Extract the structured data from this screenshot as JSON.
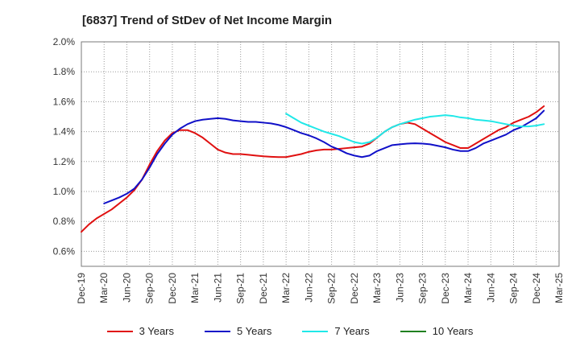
{
  "title": "[6837]  Trend of StDev of Net Income Margin",
  "chart_data": {
    "type": "line",
    "title": "[6837]  Trend of StDev of Net Income Margin",
    "x_ticks": [
      "Dec-19",
      "Mar-20",
      "Jun-20",
      "Sep-20",
      "Dec-20",
      "Mar-21",
      "Jun-21",
      "Sep-21",
      "Dec-21",
      "Mar-22",
      "Jun-22",
      "Sep-22",
      "Dec-22",
      "Mar-23",
      "Jun-23",
      "Sep-23",
      "Dec-23",
      "Mar-24",
      "Jun-24",
      "Sep-24",
      "Dec-24",
      "Mar-25"
    ],
    "y_ticks": [
      "0.6%",
      "0.8%",
      "1.0%",
      "1.2%",
      "1.4%",
      "1.6%",
      "1.8%",
      "2.0%"
    ],
    "ylim": [
      0.5,
      2.0
    ],
    "grid": true,
    "legend_position": "bottom",
    "series": [
      {
        "name": "3 Years",
        "color": "#e01010",
        "points": [
          [
            "Dec-19",
            0.73
          ],
          [
            "Jan-20",
            0.78
          ],
          [
            "Feb-20",
            0.82
          ],
          [
            "Mar-20",
            0.85
          ],
          [
            "Apr-20",
            0.88
          ],
          [
            "May-20",
            0.92
          ],
          [
            "Jun-20",
            0.96
          ],
          [
            "Jul-20",
            1.01
          ],
          [
            "Aug-20",
            1.08
          ],
          [
            "Sep-20",
            1.18
          ],
          [
            "Oct-20",
            1.27
          ],
          [
            "Nov-20",
            1.34
          ],
          [
            "Dec-20",
            1.39
          ],
          [
            "Jan-21",
            1.41
          ],
          [
            "Feb-21",
            1.41
          ],
          [
            "Mar-21",
            1.39
          ],
          [
            "Apr-21",
            1.36
          ],
          [
            "May-21",
            1.32
          ],
          [
            "Jun-21",
            1.28
          ],
          [
            "Jul-21",
            1.26
          ],
          [
            "Aug-21",
            1.25
          ],
          [
            "Sep-21",
            1.25
          ],
          [
            "Oct-21",
            1.245
          ],
          [
            "Nov-21",
            1.24
          ],
          [
            "Dec-21",
            1.235
          ],
          [
            "Jan-22",
            1.232
          ],
          [
            "Feb-22",
            1.23
          ],
          [
            "Mar-22",
            1.23
          ],
          [
            "Apr-22",
            1.24
          ],
          [
            "May-22",
            1.25
          ],
          [
            "Jun-22",
            1.265
          ],
          [
            "Jul-22",
            1.275
          ],
          [
            "Aug-22",
            1.28
          ],
          [
            "Sep-22",
            1.28
          ],
          [
            "Oct-22",
            1.285
          ],
          [
            "Nov-22",
            1.29
          ],
          [
            "Dec-22",
            1.295
          ],
          [
            "Jan-23",
            1.3
          ],
          [
            "Feb-23",
            1.32
          ],
          [
            "Mar-23",
            1.36
          ],
          [
            "Apr-23",
            1.4
          ],
          [
            "May-23",
            1.43
          ],
          [
            "Jun-23",
            1.45
          ],
          [
            "Jul-23",
            1.46
          ],
          [
            "Aug-23",
            1.45
          ],
          [
            "Sep-23",
            1.42
          ],
          [
            "Oct-23",
            1.39
          ],
          [
            "Nov-23",
            1.36
          ],
          [
            "Dec-23",
            1.33
          ],
          [
            "Jan-24",
            1.31
          ],
          [
            "Feb-24",
            1.29
          ],
          [
            "Mar-24",
            1.29
          ],
          [
            "Apr-24",
            1.32
          ],
          [
            "May-24",
            1.35
          ],
          [
            "Jun-24",
            1.38
          ],
          [
            "Jul-24",
            1.41
          ],
          [
            "Aug-24",
            1.43
          ],
          [
            "Sep-24",
            1.46
          ],
          [
            "Oct-24",
            1.48
          ],
          [
            "Nov-24",
            1.5
          ],
          [
            "Dec-24",
            1.53
          ],
          [
            "Jan-25",
            1.57
          ]
        ]
      },
      {
        "name": "5 Years",
        "color": "#1010c8",
        "points": [
          [
            "Mar-20",
            0.92
          ],
          [
            "Apr-20",
            0.94
          ],
          [
            "May-20",
            0.96
          ],
          [
            "Jun-20",
            0.985
          ],
          [
            "Jul-20",
            1.02
          ],
          [
            "Aug-20",
            1.08
          ],
          [
            "Sep-20",
            1.16
          ],
          [
            "Oct-20",
            1.25
          ],
          [
            "Nov-20",
            1.32
          ],
          [
            "Dec-20",
            1.38
          ],
          [
            "Jan-21",
            1.42
          ],
          [
            "Feb-21",
            1.45
          ],
          [
            "Mar-21",
            1.47
          ],
          [
            "Apr-21",
            1.48
          ],
          [
            "May-21",
            1.485
          ],
          [
            "Jun-21",
            1.49
          ],
          [
            "Jul-21",
            1.485
          ],
          [
            "Aug-21",
            1.475
          ],
          [
            "Sep-21",
            1.47
          ],
          [
            "Oct-21",
            1.465
          ],
          [
            "Nov-21",
            1.465
          ],
          [
            "Dec-21",
            1.46
          ],
          [
            "Jan-22",
            1.455
          ],
          [
            "Feb-22",
            1.445
          ],
          [
            "Mar-22",
            1.43
          ],
          [
            "Apr-22",
            1.41
          ],
          [
            "May-22",
            1.39
          ],
          [
            "Jun-22",
            1.375
          ],
          [
            "Jul-22",
            1.355
          ],
          [
            "Aug-22",
            1.33
          ],
          [
            "Sep-22",
            1.3
          ],
          [
            "Oct-22",
            1.28
          ],
          [
            "Nov-22",
            1.255
          ],
          [
            "Dec-22",
            1.24
          ],
          [
            "Jan-23",
            1.23
          ],
          [
            "Feb-23",
            1.24
          ],
          [
            "Mar-23",
            1.27
          ],
          [
            "Apr-23",
            1.29
          ],
          [
            "May-23",
            1.31
          ],
          [
            "Jun-23",
            1.315
          ],
          [
            "Jul-23",
            1.32
          ],
          [
            "Aug-23",
            1.322
          ],
          [
            "Sep-23",
            1.32
          ],
          [
            "Oct-23",
            1.315
          ],
          [
            "Nov-23",
            1.305
          ],
          [
            "Dec-23",
            1.295
          ],
          [
            "Jan-24",
            1.28
          ],
          [
            "Feb-24",
            1.27
          ],
          [
            "Mar-24",
            1.27
          ],
          [
            "Apr-24",
            1.29
          ],
          [
            "May-24",
            1.32
          ],
          [
            "Jun-24",
            1.34
          ],
          [
            "Jul-24",
            1.36
          ],
          [
            "Aug-24",
            1.38
          ],
          [
            "Sep-24",
            1.41
          ],
          [
            "Oct-24",
            1.43
          ],
          [
            "Nov-24",
            1.46
          ],
          [
            "Dec-24",
            1.49
          ],
          [
            "Jan-25",
            1.54
          ]
        ]
      },
      {
        "name": "7 Years",
        "color": "#20e8e8",
        "points": [
          [
            "Mar-22",
            1.52
          ],
          [
            "Apr-22",
            1.49
          ],
          [
            "May-22",
            1.46
          ],
          [
            "Jun-22",
            1.44
          ],
          [
            "Jul-22",
            1.42
          ],
          [
            "Aug-22",
            1.4
          ],
          [
            "Sep-22",
            1.385
          ],
          [
            "Oct-22",
            1.37
          ],
          [
            "Nov-22",
            1.35
          ],
          [
            "Dec-22",
            1.33
          ],
          [
            "Jan-23",
            1.32
          ],
          [
            "Feb-23",
            1.33
          ],
          [
            "Mar-23",
            1.36
          ],
          [
            "Apr-23",
            1.4
          ],
          [
            "May-23",
            1.43
          ],
          [
            "Jun-23",
            1.45
          ],
          [
            "Jul-23",
            1.465
          ],
          [
            "Aug-23",
            1.48
          ],
          [
            "Sep-23",
            1.49
          ],
          [
            "Oct-23",
            1.5
          ],
          [
            "Nov-23",
            1.505
          ],
          [
            "Dec-23",
            1.51
          ],
          [
            "Jan-24",
            1.505
          ],
          [
            "Feb-24",
            1.495
          ],
          [
            "Mar-24",
            1.49
          ],
          [
            "Apr-24",
            1.48
          ],
          [
            "May-24",
            1.475
          ],
          [
            "Jun-24",
            1.47
          ],
          [
            "Jul-24",
            1.46
          ],
          [
            "Aug-24",
            1.45
          ],
          [
            "Sep-24",
            1.44
          ],
          [
            "Oct-24",
            1.435
          ],
          [
            "Nov-24",
            1.435
          ],
          [
            "Dec-24",
            1.44
          ],
          [
            "Jan-25",
            1.45
          ]
        ]
      },
      {
        "name": "10 Years",
        "color": "#208020",
        "points": []
      }
    ]
  }
}
